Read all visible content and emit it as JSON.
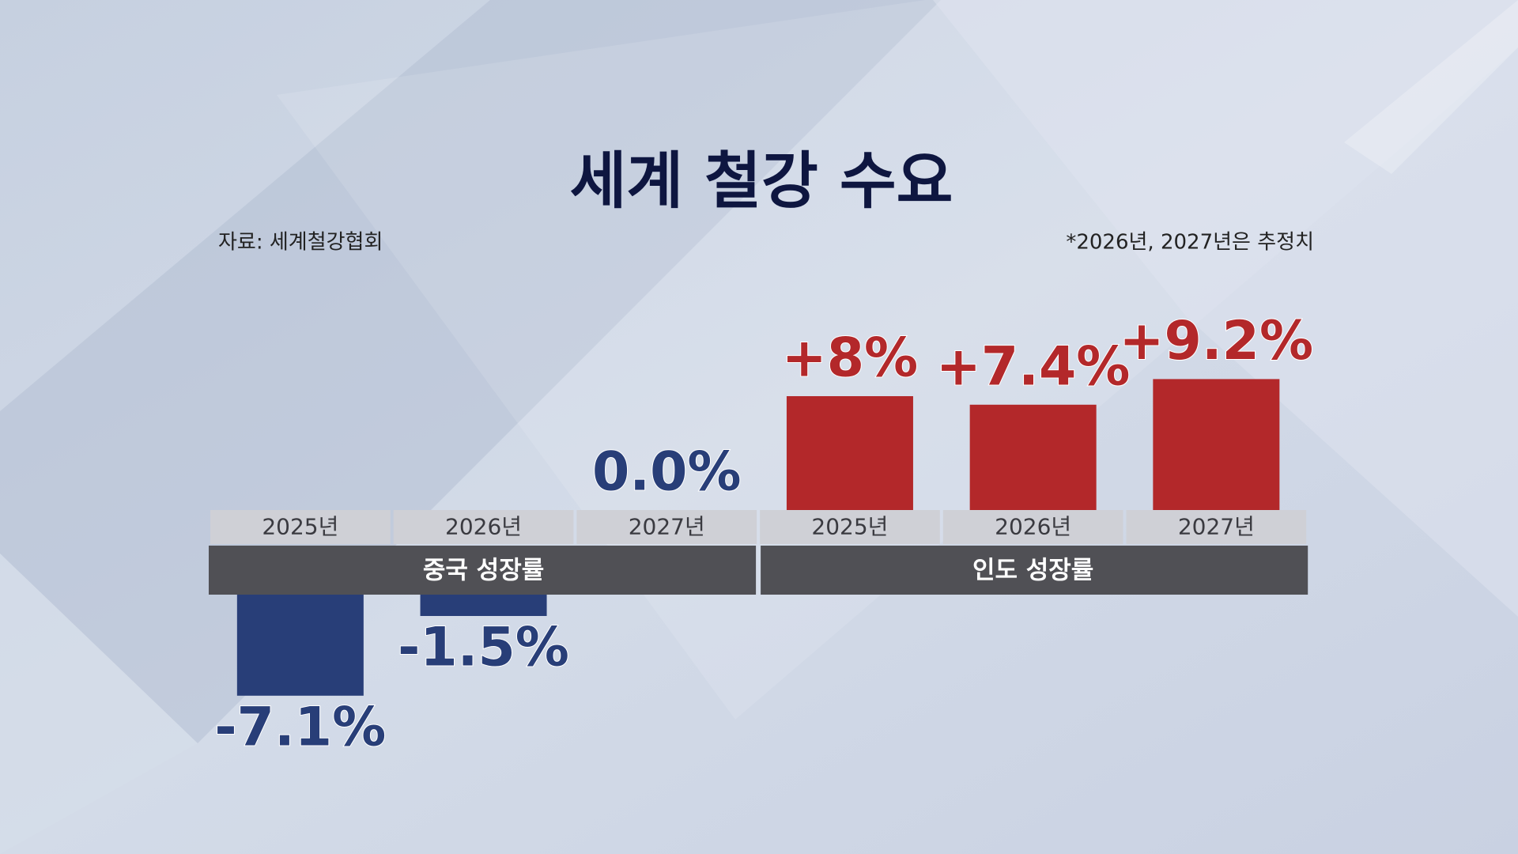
{
  "chart_data": {
    "type": "bar",
    "title": "세계 철강 수요",
    "source": "자료: 세계철강협회",
    "note": "*2026년, 2027년은 추정치",
    "series": [
      {
        "name": "중국 성장률",
        "color": "#283e78",
        "categories": [
          "2025년",
          "2026년",
          "2027년"
        ],
        "values": [
          -7.1,
          -1.5,
          0.0
        ],
        "value_labels": [
          "-7.1%",
          "-1.5%",
          "0.0%"
        ]
      },
      {
        "name": "인도 성장률",
        "color": "#b3282a",
        "categories": [
          "2025년",
          "2026년",
          "2027년"
        ],
        "values": [
          8,
          7.4,
          9.2
        ],
        "value_labels": [
          "+8%",
          "+7.4%",
          "+9.2%"
        ]
      }
    ]
  }
}
